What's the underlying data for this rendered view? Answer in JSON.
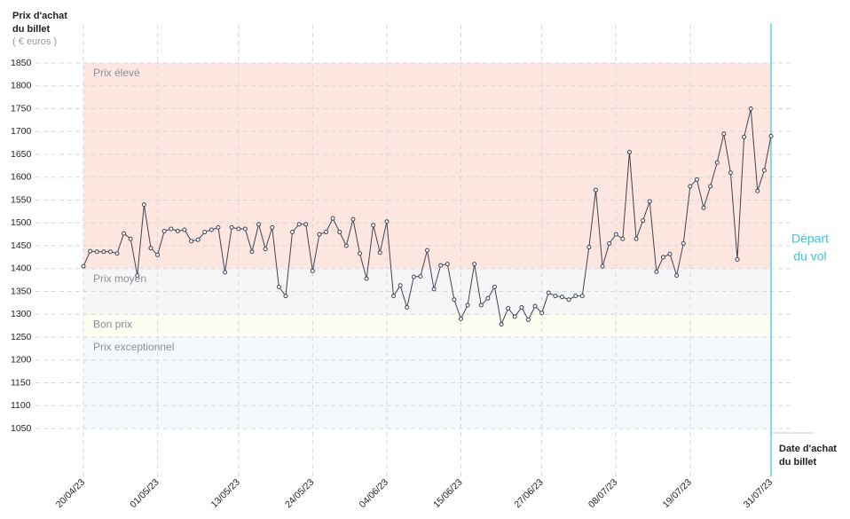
{
  "chart_data": {
    "type": "line",
    "y_title": [
      "Prix d'achat",
      "du billet"
    ],
    "y_unit": "( € euros )",
    "x_title": [
      "Date d'achat",
      "du billet"
    ],
    "series": [
      {
        "color": "#3d4456",
        "values": [
          1405,
          1438,
          1437,
          1437,
          1437,
          1433,
          1477,
          1465,
          1385,
          1540,
          1445,
          1430,
          1482,
          1487,
          1482,
          1485,
          1460,
          1463,
          1480,
          1485,
          1490,
          1392,
          1490,
          1487,
          1487,
          1437,
          1497,
          1443,
          1490,
          1360,
          1340,
          1480,
          1497,
          1497,
          1395,
          1475,
          1480,
          1510,
          1480,
          1450,
          1508,
          1433,
          1378,
          1495,
          1435,
          1503,
          1340,
          1363,
          1315,
          1382,
          1383,
          1440,
          1355,
          1407,
          1410,
          1332,
          1290,
          1320,
          1410,
          1320,
          1335,
          1360,
          1278,
          1313,
          1295,
          1315,
          1288,
          1318,
          1303,
          1347,
          1340,
          1338,
          1332,
          1340,
          1340,
          1447,
          1572,
          1405,
          1455,
          1475,
          1465,
          1655,
          1465,
          1505,
          1547,
          1393,
          1425,
          1432,
          1385,
          1455,
          1580,
          1595,
          1533,
          1580,
          1632,
          1695,
          1610,
          1420,
          1688,
          1750,
          1570,
          1615,
          1690
        ]
      }
    ],
    "xlim": [
      0,
      102
    ],
    "xticks": [
      {
        "value": 0,
        "label": "20/04/23"
      },
      {
        "value": 11,
        "label": "01/05/23"
      },
      {
        "value": 23,
        "label": "13/05/23"
      },
      {
        "value": 34,
        "label": "24/05/23"
      },
      {
        "value": 45,
        "label": "04/06/23"
      },
      {
        "value": 56,
        "label": "15/06/23"
      },
      {
        "value": 68,
        "label": "27/06/23"
      },
      {
        "value": 79,
        "label": "08/07/23"
      },
      {
        "value": 90,
        "label": "19/07/23"
      },
      {
        "value": 102,
        "label": "31/07/23"
      }
    ],
    "ylim": [
      1050,
      1850
    ],
    "yticks": [
      1050,
      1100,
      1150,
      1200,
      1250,
      1300,
      1350,
      1400,
      1450,
      1500,
      1550,
      1600,
      1650,
      1700,
      1750,
      1800,
      1850
    ],
    "grid": true,
    "bands": [
      {
        "label": "Prix élevé",
        "from": 1400,
        "to": 1850,
        "color": "#fde6df"
      },
      {
        "label": "Prix moyen",
        "from": 1300,
        "to": 1400,
        "color": "#f6f6f6"
      },
      {
        "label": "Bon prix",
        "from": 1250,
        "to": 1300,
        "color": "#fcfcf0"
      },
      {
        "label": "Prix exceptionnel",
        "from": 1050,
        "to": 1250,
        "color": "#f3f9fc"
      }
    ],
    "marker": {
      "x": 102,
      "label": [
        "Départ",
        "du vol"
      ],
      "color": "#3cc6de"
    }
  }
}
